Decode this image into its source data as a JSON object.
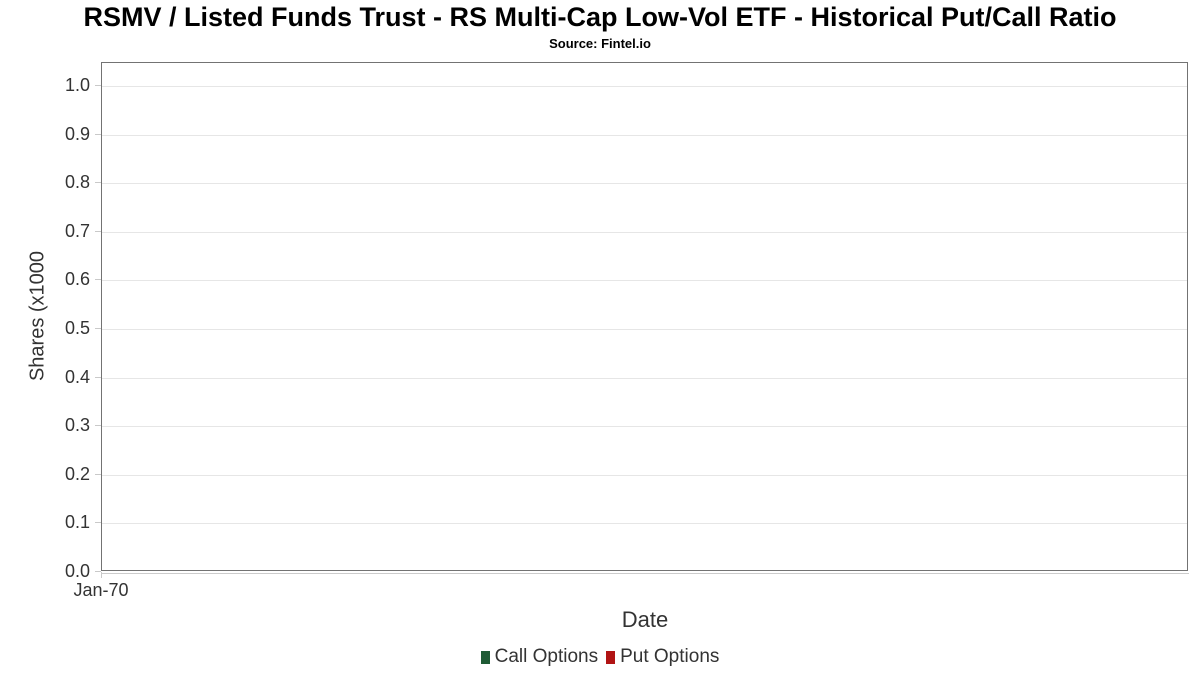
{
  "chart_data": {
    "type": "line",
    "title": "RSMV / Listed Funds Trust - RS Multi-Cap Low-Vol ETF - Historical Put/Call Ratio",
    "subtitle": "Source: Fintel.io",
    "xlabel": "Date",
    "ylabel": "Shares (x1000",
    "x_ticks": [
      "Jan-70"
    ],
    "y_ticks": [
      "1.0",
      "0.9",
      "0.8",
      "0.7",
      "0.6",
      "0.5",
      "0.4",
      "0.3",
      "0.2",
      "0.1",
      "0.0"
    ],
    "ylim": [
      0.0,
      1.05
    ],
    "grid": true,
    "legend_position": "bottom",
    "series": [
      {
        "name": "Call Options",
        "color": "#1f5b35",
        "x": [],
        "values": []
      },
      {
        "name": "Put Options",
        "color": "#b11414",
        "x": [],
        "values": []
      }
    ],
    "colors": {
      "plot_border": "#737373",
      "gridline": "#e6e6e6",
      "tick": "#c9c9c9",
      "label_text": "#333333",
      "title_text": "#000000",
      "background": "#ffffff"
    }
  }
}
